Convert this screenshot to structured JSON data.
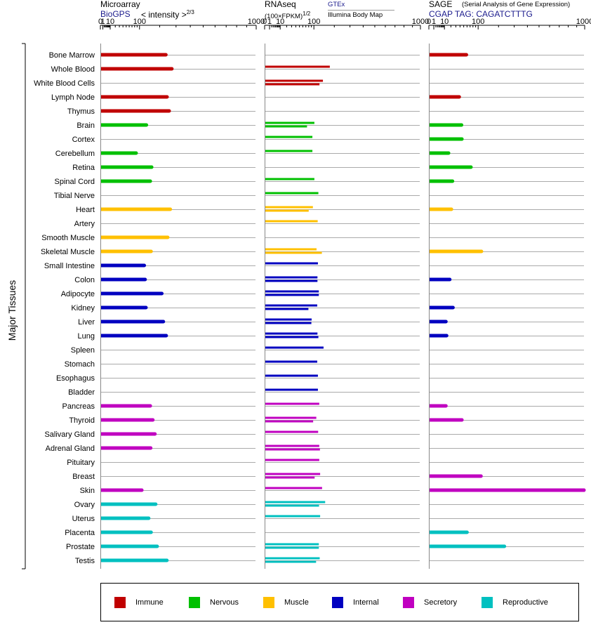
{
  "panels": [
    {
      "key": "microarray",
      "title": "Microarray",
      "source": "BioGPS",
      "unit_prefix": "< intensity >",
      "unit_exp": "2/3"
    },
    {
      "key": "rnaseq",
      "title": "RNAseq",
      "unit_prefix": "(100×FPKM)",
      "unit_exp": "1/2",
      "source_a": "GTEx",
      "source_b": "Illumina Body Map"
    },
    {
      "key": "sage",
      "title": "SAGE",
      "subtitle": "(Serial Analysis of Gene Expression)",
      "tag": "CGAP TAG: CAGATCTTTG"
    }
  ],
  "y_axis_label": "Major Tissues",
  "legend": [
    {
      "label": "Immune",
      "color": "#c00000"
    },
    {
      "label": "Nervous",
      "color": "#00c000"
    },
    {
      "label": "Muscle",
      "color": "#ffc000"
    },
    {
      "label": "Internal",
      "color": "#0000c0"
    },
    {
      "label": "Secretory",
      "color": "#c000c0"
    },
    {
      "label": "Reproductive",
      "color": "#00c0c0"
    }
  ],
  "chart_data": {
    "type": "bar",
    "orientation": "horizontal",
    "x_scale": "power",
    "x_ticks": [
      0,
      1,
      10,
      100,
      1000
    ],
    "xlim": [
      0,
      1000
    ],
    "categories": [
      "Bone Marrow",
      "Whole Blood",
      "White Blood Cells",
      "Lymph Node",
      "Thymus",
      "Brain",
      "Cortex",
      "Cerebellum",
      "Retina",
      "Spinal Cord",
      "Tibial Nerve",
      "Heart",
      "Artery",
      "Smooth Muscle",
      "Skeletal Muscle",
      "Small Intestine",
      "Colon",
      "Adipocyte",
      "Kidney",
      "Liver",
      "Lung",
      "Spleen",
      "Stomach",
      "Esophagus",
      "Bladder",
      "Pancreas",
      "Thyroid",
      "Salivary Gland",
      "Adrenal Gland",
      "Pituitary",
      "Breast",
      "Skin",
      "Ovary",
      "Uterus",
      "Placenta",
      "Prostate",
      "Testis"
    ],
    "groups": [
      "Immune",
      "Immune",
      "Immune",
      "Immune",
      "Immune",
      "Nervous",
      "Nervous",
      "Nervous",
      "Nervous",
      "Nervous",
      "Nervous",
      "Muscle",
      "Muscle",
      "Muscle",
      "Muscle",
      "Internal",
      "Internal",
      "Internal",
      "Internal",
      "Internal",
      "Internal",
      "Internal",
      "Internal",
      "Internal",
      "Internal",
      "Secretory",
      "Secretory",
      "Secretory",
      "Secretory",
      "Secretory",
      "Secretory",
      "Secretory",
      "Reproductive",
      "Reproductive",
      "Reproductive",
      "Reproductive",
      "Reproductive"
    ],
    "microarray": [
      236,
      273,
      null,
      243,
      256,
      131,
      null,
      86,
      157,
      150,
      null,
      263,
      null,
      247,
      154,
      121,
      125,
      212,
      129,
      221,
      238,
      null,
      null,
      null,
      null,
      150,
      163,
      174,
      152,
      null,
      null,
      110,
      178,
      142,
      154,
      186,
      242
    ],
    "rnaseq_gtex": [
      null,
      175,
      null,
      null,
      null,
      null,
      null,
      null,
      null,
      null,
      null,
      null,
      null,
      null,
      null,
      null,
      null,
      null,
      null,
      null,
      null,
      null,
      null,
      null,
      null,
      null,
      null,
      null,
      null,
      null,
      null,
      null,
      null,
      null,
      null,
      null,
      null
    ],
    "rnaseq_ibm": [
      null,
      null,
      null,
      null,
      null,
      null,
      null,
      null,
      null,
      null,
      null,
      null,
      null,
      null,
      null,
      null,
      null,
      null,
      null,
      null,
      null,
      null,
      null,
      null,
      null,
      null,
      null,
      null,
      null,
      null,
      null,
      null,
      null,
      null,
      null,
      null,
      null
    ],
    "rnaseq": [
      [
        null
      ],
      [
        175
      ],
      [
        140,
        124
      ],
      [
        null
      ],
      [
        null
      ],
      [
        102,
        74
      ],
      [
        94
      ],
      [
        94
      ],
      [
        null
      ],
      [
        102
      ],
      [
        119
      ],
      [
        96,
        80
      ],
      [
        116
      ],
      [
        null
      ],
      [
        111,
        135
      ],
      [
        117
      ],
      [
        115,
        115
      ],
      [
        121,
        121
      ],
      [
        114,
        79
      ],
      [
        91,
        90
      ],
      [
        115,
        119
      ],
      [
        143
      ],
      [
        114
      ],
      [
        117
      ],
      [
        117
      ],
      [
        123
      ],
      [
        110,
        97
      ],
      [
        118
      ],
      [
        123,
        126
      ],
      [
        123
      ],
      [
        127,
        103
      ],
      [
        136
      ],
      [
        151,
        122
      ],
      [
        127
      ],
      [
        null
      ],
      [
        121,
        121
      ],
      [
        125,
        109
      ]
    ],
    "sage": [
      58,
      null,
      null,
      38,
      null,
      44,
      45,
      16,
      73,
      23,
      null,
      21,
      null,
      null,
      114,
      null,
      18,
      null,
      24,
      12,
      13,
      null,
      null,
      null,
      null,
      12,
      45,
      null,
      null,
      null,
      112,
      1000,
      null,
      null,
      60,
      235,
      null
    ]
  }
}
